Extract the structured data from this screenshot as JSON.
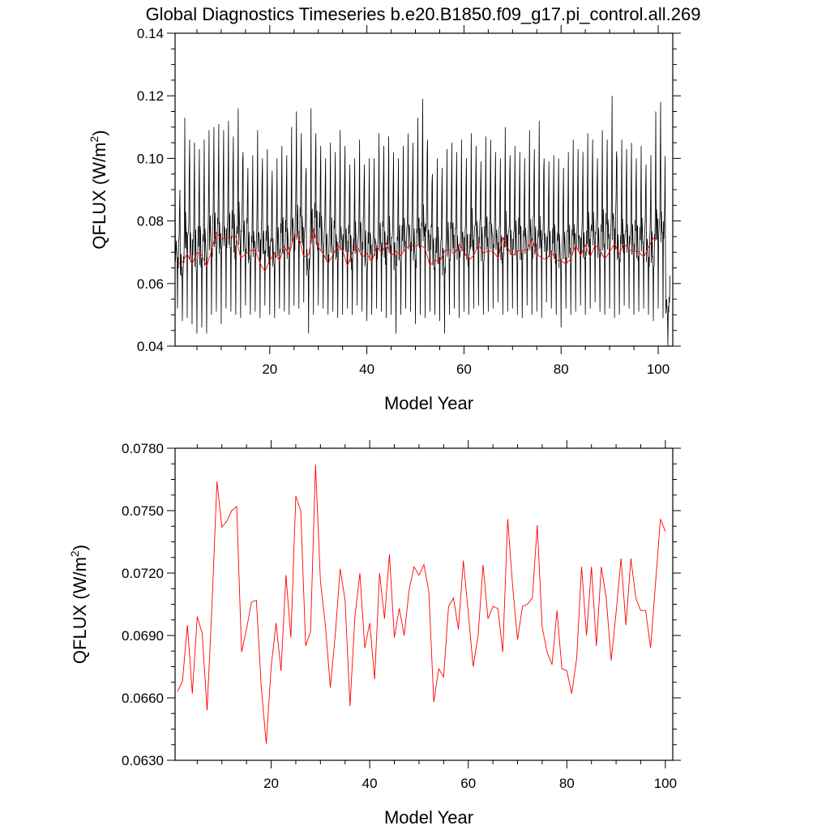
{
  "title": "Global Diagnostics Timeseries b.e20.B1850.f09_g17.pi_control.all.269",
  "chart_data": [
    {
      "type": "line",
      "xlabel": "Model Year",
      "ylabel_base": "QFLUX (W/m",
      "ylabel_sup": "2",
      "ylabel_close": ")",
      "xlim": [
        0.5,
        103
      ],
      "ylim": [
        0.04,
        0.14
      ],
      "xticks": [
        20,
        40,
        60,
        80,
        100
      ],
      "yticks": [
        0.04,
        0.06,
        0.08,
        0.1,
        0.12,
        0.14
      ],
      "ytick_labels": [
        "0.04",
        "0.06",
        "0.08",
        "0.10",
        "0.12",
        "0.14"
      ],
      "grid": false,
      "series": [
        {
          "color": "#000000",
          "kind": "monthly",
          "start_year": 0.5,
          "months_per_year": 12,
          "years": 102,
          "peaks": [
            0.095,
            0.09,
            0.113,
            0.106,
            0.105,
            0.103,
            0.106,
            0.109,
            0.11,
            0.111,
            0.109,
            0.112,
            0.107,
            0.116,
            0.102,
            0.097,
            0.101,
            0.109,
            0.1,
            0.103,
            0.096,
            0.1,
            0.104,
            0.101,
            0.11,
            0.115,
            0.108,
            0.097,
            0.116,
            0.108,
            0.104,
            0.1,
            0.105,
            0.102,
            0.109,
            0.104,
            0.098,
            0.1,
            0.106,
            0.098,
            0.1,
            0.1,
            0.108,
            0.104,
            0.107,
            0.102,
            0.1,
            0.104,
            0.108,
            0.105,
            0.113,
            0.119,
            0.106,
            0.095,
            0.1,
            0.097,
            0.103,
            0.105,
            0.102,
            0.106,
            0.1,
            0.108,
            0.104,
            0.099,
            0.107,
            0.106,
            0.102,
            0.1,
            0.11,
            0.101,
            0.104,
            0.102,
            0.1,
            0.109,
            0.103,
            0.112,
            0.1,
            0.099,
            0.101,
            0.1,
            0.097,
            0.102,
            0.106,
            0.103,
            0.102,
            0.108,
            0.106,
            0.1,
            0.109,
            0.106,
            0.12,
            0.1,
            0.106,
            0.103,
            0.105,
            0.1,
            0.104,
            0.098,
            0.101,
            0.115,
            0.118,
            0.07
          ],
          "troughs": [
            0.052,
            0.048,
            0.049,
            0.047,
            0.044,
            0.046,
            0.044,
            0.05,
            0.051,
            0.047,
            0.052,
            0.051,
            0.05,
            0.049,
            0.053,
            0.05,
            0.051,
            0.049,
            0.053,
            0.05,
            0.049,
            0.052,
            0.051,
            0.05,
            0.053,
            0.052,
            0.054,
            0.044,
            0.05,
            0.053,
            0.052,
            0.05,
            0.051,
            0.049,
            0.05,
            0.052,
            0.05,
            0.053,
            0.051,
            0.048,
            0.05,
            0.052,
            0.051,
            0.049,
            0.05,
            0.044,
            0.05,
            0.052,
            0.051,
            0.047,
            0.05,
            0.049,
            0.051,
            0.05,
            0.048,
            0.044,
            0.05,
            0.052,
            0.049,
            0.051,
            0.05,
            0.052,
            0.053,
            0.05,
            0.051,
            0.052,
            0.054,
            0.05,
            0.051,
            0.052,
            0.05,
            0.049,
            0.053,
            0.05,
            0.051,
            0.049,
            0.054,
            0.052,
            0.05,
            0.046,
            0.052,
            0.05,
            0.051,
            0.053,
            0.05,
            0.052,
            0.054,
            0.051,
            0.05,
            0.052,
            0.049,
            0.05,
            0.053,
            0.052,
            0.05,
            0.051,
            0.052,
            0.05,
            0.048,
            0.052,
            0.049,
            0.04
          ]
        },
        {
          "color": "#ff0000",
          "kind": "annual",
          "x_start": 1,
          "values_ref": 1
        }
      ]
    },
    {
      "type": "line",
      "xlabel": "Model Year",
      "ylabel_base": "QFLUX (W/m",
      "ylabel_sup": "2",
      "ylabel_close": ")",
      "xlim": [
        0.5,
        101.5
      ],
      "ylim": [
        0.063,
        0.078
      ],
      "xticks": [
        20,
        40,
        60,
        80,
        100
      ],
      "yticks": [
        0.063,
        0.066,
        0.069,
        0.072,
        0.075,
        0.078
      ],
      "ytick_labels": [
        "0.0630",
        "0.0660",
        "0.0690",
        "0.0720",
        "0.0750",
        "0.0780"
      ],
      "grid": false,
      "series": [
        {
          "color": "#ff0000",
          "kind": "annual",
          "x_start": 1,
          "values": [
            0.0663,
            0.0668,
            0.0695,
            0.0662,
            0.0699,
            0.0691,
            0.0654,
            0.0705,
            0.0764,
            0.0742,
            0.0745,
            0.075,
            0.0752,
            0.0682,
            0.0693,
            0.0706,
            0.0707,
            0.0665,
            0.0638,
            0.0675,
            0.0696,
            0.0673,
            0.0719,
            0.0689,
            0.0757,
            0.075,
            0.0685,
            0.0692,
            0.0772,
            0.0716,
            0.0695,
            0.0665,
            0.069,
            0.0722,
            0.0707,
            0.0656,
            0.0699,
            0.072,
            0.0684,
            0.0696,
            0.0669,
            0.072,
            0.0698,
            0.0729,
            0.0689,
            0.0703,
            0.069,
            0.0712,
            0.0723,
            0.0719,
            0.0724,
            0.0711,
            0.0658,
            0.0674,
            0.067,
            0.0704,
            0.0708,
            0.0693,
            0.0726,
            0.0701,
            0.0675,
            0.069,
            0.0724,
            0.0698,
            0.0704,
            0.0703,
            0.0682,
            0.0746,
            0.0714,
            0.0688,
            0.0704,
            0.0705,
            0.0708,
            0.0743,
            0.0694,
            0.0682,
            0.0676,
            0.0702,
            0.0674,
            0.0673,
            0.0662,
            0.0679,
            0.0723,
            0.069,
            0.0723,
            0.0685,
            0.0723,
            0.0708,
            0.0678,
            0.0701,
            0.0727,
            0.0695,
            0.0727,
            0.0708,
            0.0702,
            0.0702,
            0.0684,
            0.0715,
            0.0746,
            0.074
          ]
        }
      ]
    }
  ]
}
